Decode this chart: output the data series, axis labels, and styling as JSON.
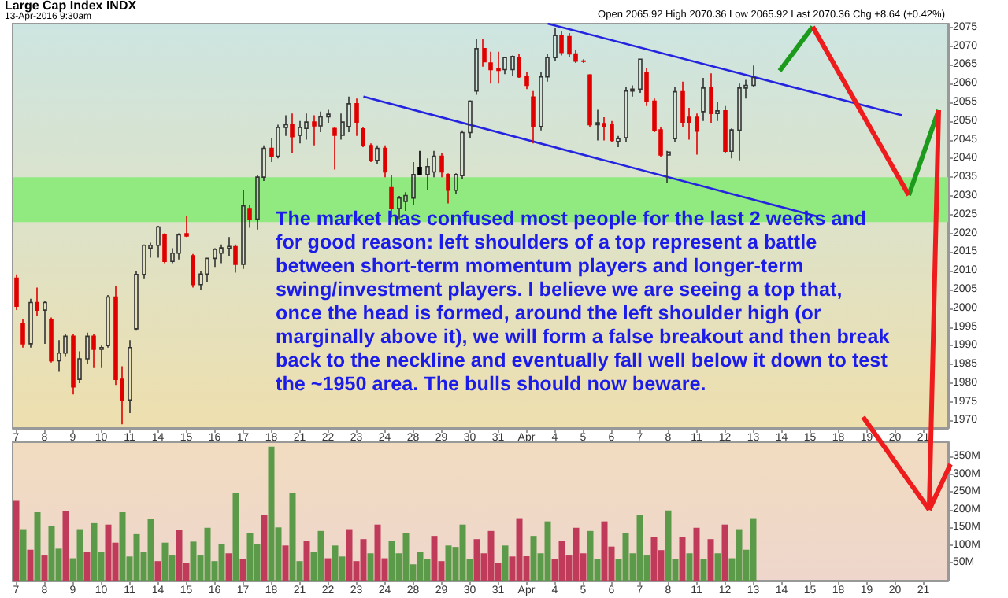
{
  "chart_data": [
    {
      "type": "candlestick",
      "title": "Large Cap Index INDX",
      "subtitle": "13-Apr-2016 9:30am",
      "annotations": [
        "Open 2065.92 High 2070.36 Low 2065.92 Last 2070.36 Chg +8.64 (+0.42%)",
        "The market has confused most people for the last 2 weeks and for good reason: left shoulders of a top represent a battle between short-term momentum players and longer-term swing/investment players. I believe we are seeing a top that, once the head is formed, around the left shoulder high (or marginally above it), we will form a false breakout and then break back to the neckline and eventually fall well below it down to test the ~1950 area. The bulls should now beware."
      ],
      "categories": [
        "7",
        null,
        null,
        null,
        "8",
        null,
        null,
        null,
        "9",
        null,
        null,
        null,
        "10",
        null,
        null,
        null,
        "11",
        null,
        null,
        null,
        "14",
        null,
        null,
        null,
        "15",
        null,
        null,
        null,
        "16",
        null,
        null,
        null,
        "17",
        null,
        null,
        null,
        "18",
        null,
        null,
        null,
        "21",
        null,
        null,
        null,
        "22",
        null,
        null,
        null,
        "23",
        null,
        null,
        null,
        "24",
        null,
        null,
        null,
        "28",
        null,
        null,
        null,
        "29",
        null,
        null,
        null,
        "30",
        null,
        null,
        null,
        "31",
        null,
        null,
        null,
        "Apr",
        null,
        null,
        null,
        "4",
        null,
        null,
        null,
        "5",
        null,
        null,
        null,
        "6",
        null,
        null,
        null,
        "7",
        null,
        null,
        null,
        "8",
        null,
        null,
        null,
        "11",
        null,
        null,
        null,
        "12",
        null,
        null,
        null,
        "13",
        null,
        null,
        null,
        "14",
        null,
        null,
        null,
        "15",
        null,
        null,
        null,
        "18",
        null,
        null,
        null,
        "19",
        null,
        null,
        null,
        "20",
        null,
        null,
        null,
        "21",
        null,
        null,
        null
      ],
      "colors": [
        "#e00000",
        "#e00000",
        "#333333",
        "#e00000",
        "#333333",
        "#e00000",
        "#333333",
        "#333333",
        "#e00000",
        "#333333",
        "#333333",
        "#e00000",
        "#333333",
        "#333333",
        "#e00000",
        "#e00000",
        "#333333",
        "#333333",
        "#333333",
        "#333333",
        "#333333",
        "#e00000",
        "#333333",
        "#333333",
        "#e00000",
        "#e00000",
        "#333333",
        "#333333",
        "#333333",
        "#333333",
        "#333333",
        "#e00000",
        "#333333",
        "#e00000",
        "#333333",
        "#333333",
        "#e00000",
        "#333333",
        "#333333",
        "#e00000",
        "#333333",
        "#333333",
        "#e00000",
        "#333333",
        "#333333",
        "#e00000",
        "#333333",
        "#333333",
        "#e00000",
        "#e00000",
        "#e00000",
        "#333333",
        "#e00000",
        "#e00000",
        "#333333",
        "#333333",
        "#333333",
        "#000000",
        "#333333",
        "#333333",
        "#e00000",
        "#e00000",
        "#333333",
        "#333333",
        "#333333",
        "#333333",
        "#e00000",
        "#e00000",
        "#e00000",
        "#333333",
        "#333333",
        "#e00000",
        "#e00000",
        "#e00000",
        "#333333",
        "#333333",
        "#333333",
        "#e00000",
        "#e00000",
        "#e00000",
        "#e00000",
        "#e00000",
        "#333333",
        "#e00000",
        "#e00000",
        "#333333",
        "#333333",
        "#333333",
        "#333333",
        "#e00000",
        "#e00000",
        "#e00000",
        "#333333",
        "#333333",
        "#e00000",
        "#e00000",
        "#e00000",
        "#333333",
        "#e00000",
        "#333333",
        "#e00000",
        "#333333",
        "#333333",
        "#333333",
        "#333333",
        null,
        null,
        null,
        null,
        null,
        null,
        null,
        null,
        null,
        null,
        null,
        null,
        null,
        null,
        null,
        null,
        null,
        null,
        null,
        null,
        null,
        null,
        null,
        null,
        null,
        null,
        null
      ],
      "ohlc": [
        [
          2008,
          2009,
          1999.5,
          2000.5
        ],
        [
          1996,
          1997,
          1989.5,
          1990.5
        ],
        [
          1990.5,
          2002.5,
          1989.5,
          2001.5
        ],
        [
          2001.5,
          2005.5,
          1998,
          1999.5
        ],
        [
          1999.5,
          2002,
          1990.5,
          2001.5
        ],
        [
          1997,
          1997.5,
          1985.5,
          1986
        ],
        [
          1986,
          1991.5,
          1983,
          1988
        ],
        [
          1988,
          1993,
          1987,
          1992.5
        ],
        [
          1992.5,
          1993,
          1977,
          1979
        ],
        [
          1981,
          1988.5,
          1980,
          1986.5
        ],
        [
          1986.5,
          1993.5,
          1985,
          1992.5
        ],
        [
          1992.5,
          1993,
          1984,
          1989
        ],
        [
          1989,
          1990,
          1984,
          1989.5
        ],
        [
          1990,
          2003.5,
          1989.5,
          2003
        ],
        [
          2003,
          2006,
          1979.5,
          1981
        ],
        [
          1981,
          1984.5,
          1969,
          1975.5
        ],
        [
          1975.5,
          1991.5,
          1972,
          1989.5
        ],
        [
          1994.5,
          2010,
          1994,
          2009
        ],
        [
          2009,
          2017,
          2008,
          2016.8
        ],
        [
          2016,
          2017.5,
          2013.5,
          2016.8
        ],
        [
          2016.8,
          2022,
          2013.5,
          2021.7
        ],
        [
          2019.5,
          2020,
          2012,
          2012.5
        ],
        [
          2012.5,
          2016,
          2012,
          2014.7
        ],
        [
          2014.7,
          2020,
          2013,
          2019.6
        ],
        [
          2019.9,
          2024.5,
          2019,
          2019.3
        ],
        [
          2014,
          2014.5,
          2005.5,
          2006.3
        ],
        [
          2006.3,
          2010,
          2005,
          2009.1
        ],
        [
          2009.1,
          2013.5,
          2007,
          2013.3
        ],
        [
          2013.3,
          2016,
          2011,
          2015.7
        ],
        [
          2014.7,
          2017,
          2012,
          2016.1
        ],
        [
          2016,
          2019,
          2014,
          2016.5
        ],
        [
          2016.4,
          2017,
          2009.5,
          2011.7
        ],
        [
          2011.7,
          2031.5,
          2010.5,
          2027.3
        ],
        [
          2026.6,
          2027.5,
          2021.5,
          2023.8
        ],
        [
          2023.8,
          2035.5,
          2021,
          2035
        ],
        [
          2035,
          2043.5,
          2034,
          2042.7
        ],
        [
          2042.7,
          2045.5,
          2039,
          2040.6
        ],
        [
          2040.6,
          2049,
          2040,
          2048.3
        ],
        [
          2048.3,
          2051.5,
          2046,
          2049
        ],
        [
          2049,
          2052,
          2041.5,
          2045.8
        ],
        [
          2046.2,
          2050,
          2044,
          2048.3
        ],
        [
          2048,
          2052,
          2045,
          2049.7
        ],
        [
          2049.7,
          2051.5,
          2043.5,
          2048.7
        ],
        [
          2048.7,
          2052.5,
          2047,
          2051.1
        ],
        [
          2051.1,
          2053,
          2049.5,
          2051.8
        ],
        [
          2048,
          2048.5,
          2037,
          2046.2
        ],
        [
          2046.2,
          2052,
          2045,
          2049.7
        ],
        [
          2048.5,
          2056.5,
          2047,
          2054.6
        ],
        [
          2054.6,
          2056,
          2046,
          2049.7
        ],
        [
          2047.9,
          2048.5,
          2043,
          2043.4
        ],
        [
          2043.4,
          2044,
          2039,
          2039.5
        ],
        [
          2039.5,
          2043.5,
          2038.5,
          2042.7
        ],
        [
          2042.7,
          2043.5,
          2035,
          2036.4
        ],
        [
          2032.2,
          2035.6,
          2024.5,
          2026.6
        ],
        [
          2026.6,
          2030,
          2023.8,
          2029.4
        ],
        [
          2028.5,
          2031,
          2026,
          2030.1
        ],
        [
          2029.4,
          2039,
          2027.5,
          2035.7
        ],
        [
          2037.6,
          2042,
          2035.5,
          2035.8
        ],
        [
          2035.7,
          2040,
          2031.5,
          2037.8
        ],
        [
          2036.4,
          2042,
          2035,
          2040.6
        ],
        [
          2040.6,
          2041.5,
          2035,
          2036.4
        ],
        [
          2035.7,
          2036,
          2028,
          2031.5
        ],
        [
          2031.5,
          2036,
          2030.5,
          2035.7
        ],
        [
          2035.4,
          2047.5,
          2034.5,
          2046.9
        ],
        [
          2046.9,
          2055.5,
          2045.5,
          2055.3
        ],
        [
          2058,
          2072,
          2057,
          2069.3
        ],
        [
          2069.3,
          2072,
          2064.5,
          2065.8
        ],
        [
          2065.5,
          2068.5,
          2060,
          2063.7
        ],
        [
          2064,
          2068.5,
          2060,
          2063.5
        ],
        [
          2063.7,
          2067,
          2062.5,
          2066.9
        ],
        [
          2063.7,
          2067.5,
          2062,
          2067.2
        ],
        [
          2066.9,
          2068,
          2061.5,
          2061.8
        ],
        [
          2061.8,
          2063,
          2058.5,
          2059.5
        ],
        [
          2056.4,
          2058,
          2044,
          2048.5
        ],
        [
          2048.5,
          2063,
          2047.5,
          2061.8
        ],
        [
          2061.8,
          2068,
          2060.5,
          2066.9
        ],
        [
          2066.9,
          2074.8,
          2066,
          2072.8
        ],
        [
          2072.8,
          2074,
          2067.5,
          2068.3
        ],
        [
          2072.5,
          2073.5,
          2067,
          2067.9
        ],
        [
          2067.9,
          2069,
          2065.5,
          2066
        ],
        [
          2066,
          2066.5,
          2065.5,
          2065.9
        ],
        [
          2062.3,
          2062.5,
          2048.5,
          2049
        ],
        [
          2049,
          2053,
          2044.8,
          2049.5
        ],
        [
          2049.3,
          2051,
          2044.8,
          2048.5
        ],
        [
          2049,
          2050,
          2044.5,
          2044.8
        ],
        [
          2044.5,
          2046,
          2043,
          2045.3
        ],
        [
          2045.5,
          2059,
          2044.5,
          2058
        ],
        [
          2058,
          2059.5,
          2056.5,
          2058.5
        ],
        [
          2058.5,
          2066.5,
          2057.5,
          2066.5
        ],
        [
          2063,
          2064,
          2054,
          2055.3
        ],
        [
          2055.3,
          2056,
          2047,
          2047.6
        ],
        [
          2047.6,
          2048.5,
          2040.5,
          2040.9
        ],
        [
          2040.9,
          2042,
          2033.5,
          2041.7
        ],
        [
          2045.3,
          2059,
          2044.5,
          2057.8
        ],
        [
          2057.8,
          2060.5,
          2048.5,
          2049.7
        ],
        [
          2051,
          2053.5,
          2045,
          2049.7
        ],
        [
          2051,
          2052,
          2041,
          2047.3
        ],
        [
          2052.5,
          2061.5,
          2050,
          2058.8
        ],
        [
          2058.8,
          2062.7,
          2049.5,
          2052
        ],
        [
          2052,
          2055,
          2050,
          2052.7
        ],
        [
          2052.7,
          2054,
          2041.5,
          2041.9
        ],
        [
          2041.9,
          2048,
          2040,
          2047.6
        ],
        [
          2047.5,
          2060,
          2039.5,
          2058.8
        ],
        [
          2058.8,
          2061,
          2056,
          2059.5
        ],
        [
          2059.5,
          2064.8,
          2059,
          2061.6
        ],
        null,
        null,
        null,
        null,
        null,
        null,
        null,
        null,
        null,
        null,
        null,
        null,
        null,
        null,
        null,
        null,
        null,
        null,
        null,
        null,
        null,
        null,
        null,
        null,
        null,
        null,
        null
      ],
      "series": [
        {
          "type": "line",
          "color": "#2424e0",
          "values": [
            null,
            null,
            null,
            null,
            null,
            null,
            null,
            null,
            null,
            null,
            null,
            null,
            null,
            null,
            null,
            null,
            null,
            null,
            null,
            null,
            null,
            null,
            null,
            null,
            null,
            null,
            null,
            null,
            null,
            null,
            null,
            null,
            null,
            null,
            null,
            null,
            null,
            null,
            null,
            null,
            null,
            null,
            null,
            null,
            null,
            null,
            null,
            null,
            null,
            null,
            null,
            null,
            null,
            null,
            null,
            null,
            null,
            null,
            null,
            null,
            null,
            null,
            null,
            null,
            null,
            null,
            null,
            null,
            null,
            null,
            null,
            null,
            null,
            null,
            null,
            2076,
            null,
            null,
            null,
            null,
            null,
            null,
            null,
            null,
            null,
            null,
            null,
            null,
            null,
            null,
            null,
            null,
            null,
            null,
            null,
            null,
            null,
            null,
            null,
            null,
            null,
            null,
            null,
            null,
            null,
            null,
            null,
            null,
            null,
            null,
            null,
            null,
            null,
            null,
            null,
            null,
            null,
            null,
            null,
            null,
            null,
            null,
            null,
            null,
            null,
            2051.5,
            null,
            null,
            null,
            null,
            null,
            null
          ]
        },
        {
          "type": "line",
          "color": "#2424e0",
          "values": [
            null,
            null,
            null,
            null,
            null,
            null,
            null,
            null,
            null,
            null,
            null,
            null,
            null,
            null,
            null,
            null,
            null,
            null,
            null,
            null,
            null,
            null,
            null,
            null,
            null,
            null,
            null,
            null,
            null,
            null,
            null,
            null,
            null,
            null,
            null,
            null,
            null,
            null,
            null,
            null,
            null,
            null,
            null,
            null,
            null,
            null,
            null,
            null,
            null,
            2056.5,
            null,
            null,
            null,
            null,
            null,
            null,
            null,
            null,
            null,
            null,
            null,
            null,
            null,
            null,
            null,
            null,
            null,
            null,
            null,
            null,
            null,
            null,
            null,
            null,
            null,
            null,
            null,
            null,
            null,
            null,
            null,
            null,
            null,
            null,
            null,
            null,
            null,
            null,
            null,
            null,
            null,
            null,
            null,
            null,
            null,
            null,
            null,
            null,
            null,
            null,
            null,
            null,
            null,
            null,
            null,
            null,
            null,
            null,
            null,
            null,
            null,
            null,
            null,
            2024.5,
            null,
            null,
            null,
            null,
            null,
            null,
            null,
            null,
            null,
            null,
            null,
            null,
            null,
            null,
            null,
            null,
            null,
            null
          ]
        }
      ],
      "bands": [
        {
          "axis": "y",
          "from": 2023,
          "to": 2035,
          "color": "#90ea80"
        }
      ],
      "ylim": [
        1968,
        2076
      ],
      "yticks": [
        1970,
        1975,
        1980,
        1985,
        1990,
        1995,
        2000,
        2005,
        2010,
        2015,
        2020,
        2025,
        2030,
        2035,
        2040,
        2045,
        2050,
        2055,
        2060,
        2065,
        2070,
        2075
      ]
    },
    {
      "type": "bar",
      "categories": [
        "7",
        null,
        null,
        null,
        "8",
        null,
        null,
        null,
        "9",
        null,
        null,
        null,
        "10",
        null,
        null,
        null,
        "11",
        null,
        null,
        null,
        "14",
        null,
        null,
        null,
        "15",
        null,
        null,
        null,
        "16",
        null,
        null,
        null,
        "17",
        null,
        null,
        null,
        "18",
        null,
        null,
        null,
        "21",
        null,
        null,
        null,
        "22",
        null,
        null,
        null,
        "23",
        null,
        null,
        null,
        "24",
        null,
        null,
        null,
        "28",
        null,
        null,
        null,
        "29",
        null,
        null,
        null,
        "30",
        null,
        null,
        null,
        "31",
        null,
        null,
        null,
        "Apr",
        null,
        null,
        null,
        "4",
        null,
        null,
        null,
        "5",
        null,
        null,
        null,
        "6",
        null,
        null,
        null,
        "7",
        null,
        null,
        null,
        "8",
        null,
        null,
        null,
        "11",
        null,
        null,
        null,
        "12",
        null,
        null,
        null,
        "13",
        null,
        null,
        null,
        "14",
        null,
        null,
        null,
        "15",
        null,
        null,
        null,
        "18",
        null,
        null,
        null,
        "19",
        null,
        null,
        null,
        "20",
        null,
        null,
        null,
        "21",
        null,
        null,
        null
      ],
      "values": [
        225,
        145,
        87,
        193,
        73,
        153,
        90,
        196,
        63,
        145,
        82,
        162,
        82,
        158,
        107,
        193,
        68,
        131,
        82,
        175,
        55,
        107,
        73,
        142,
        51,
        110,
        73,
        149,
        55,
        104,
        77,
        248,
        60,
        135,
        104,
        184,
        377,
        150,
        99,
        248,
        55,
        113,
        82,
        140,
        63,
        99,
        68,
        145,
        55,
        117,
        77,
        158,
        63,
        113,
        77,
        135,
        46,
        82,
        60,
        126,
        55,
        99,
        95,
        158,
        60,
        117,
        77,
        140,
        51,
        99,
        68,
        176,
        69,
        126,
        77,
        167,
        60,
        113,
        73,
        149,
        77,
        140,
        60,
        167,
        96,
        60,
        135,
        77,
        184,
        73,
        122,
        86,
        198,
        60,
        122,
        77,
        149,
        60,
        117,
        77,
        158,
        63,
        145,
        87,
        176,
        null,
        null,
        null,
        null,
        null,
        null,
        null,
        null,
        null,
        null,
        null,
        null,
        null,
        null,
        null,
        null,
        null,
        null,
        null,
        null,
        null,
        null,
        null,
        null,
        null,
        null,
        null
      ],
      "colors": [
        "#c03a5a",
        "#5a9a48",
        "#c03a5a",
        "#5a9a48",
        "#c03a5a",
        "#5a9a48",
        "#5a9a48",
        "#c03a5a",
        "#5a9a48",
        "#5a9a48",
        "#c03a5a",
        "#5a9a48",
        "#5a9a48",
        "#c03a5a",
        "#c03a5a",
        "#5a9a48",
        "#5a9a48",
        "#5a9a48",
        "#5a9a48",
        "#5a9a48",
        "#c03a5a",
        "#5a9a48",
        "#5a9a48",
        "#c03a5a",
        "#c03a5a",
        "#5a9a48",
        "#5a9a48",
        "#5a9a48",
        "#5a9a48",
        "#5a9a48",
        "#c03a5a",
        "#5a9a48",
        "#c03a5a",
        "#5a9a48",
        "#5a9a48",
        "#c03a5a",
        "#5a9a48",
        "#5a9a48",
        "#c03a5a",
        "#5a9a48",
        "#5a9a48",
        "#c03a5a",
        "#5a9a48",
        "#5a9a48",
        "#c03a5a",
        "#5a9a48",
        "#5a9a48",
        "#c03a5a",
        "#c03a5a",
        "#c03a5a",
        "#5a9a48",
        "#c03a5a",
        "#c03a5a",
        "#5a9a48",
        "#5a9a48",
        "#5a9a48",
        "#5a9a48",
        "#5a9a48",
        "#5a9a48",
        "#c03a5a",
        "#c03a5a",
        "#5a9a48",
        "#5a9a48",
        "#5a9a48",
        "#5a9a48",
        "#c03a5a",
        "#c03a5a",
        "#c03a5a",
        "#c03a5a",
        "#5a9a48",
        "#c03a5a",
        "#c03a5a",
        "#c03a5a",
        "#5a9a48",
        "#5a9a48",
        "#5a9a48",
        "#c03a5a",
        "#c03a5a",
        "#c03a5a",
        "#c03a5a",
        "#c03a5a",
        "#5a9a48",
        "#5a9a48",
        "#c03a5a",
        "#c03a5a",
        "#5a9a48",
        "#5a9a48",
        "#5a9a48",
        "#5a9a48",
        "#5a9a48",
        "#c03a5a",
        "#c03a5a",
        "#5a9a48",
        "#5a9a48",
        "#c03a5a",
        "#5a9a48",
        "#c03a5a",
        "#5a9a48",
        "#c03a5a",
        "#5a9a48",
        "#c03a5a",
        "#5a9a48",
        "#5a9a48",
        "#5a9a48",
        "#5a9a48",
        null,
        null,
        null,
        null,
        null,
        null,
        null,
        null,
        null,
        null,
        null,
        null,
        null,
        null,
        null,
        null,
        null,
        null,
        null,
        null,
        null,
        null,
        null,
        null,
        null,
        null,
        null
      ],
      "ylim": [
        0,
        390
      ],
      "yticks": [
        {
          "value": 50,
          "label": "50M"
        },
        {
          "value": 100,
          "label": "100M"
        },
        {
          "value": 150,
          "label": "150M"
        },
        {
          "value": 200,
          "label": "200M"
        },
        {
          "value": 250,
          "label": "250M"
        },
        {
          "value": 300,
          "label": "300M"
        },
        {
          "value": 350,
          "label": "350M"
        }
      ]
    }
  ]
}
